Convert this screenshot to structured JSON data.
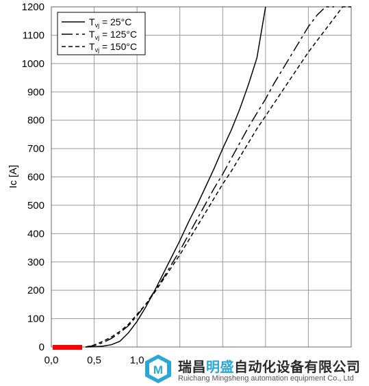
{
  "chart_data": {
    "type": "line",
    "title": "",
    "xlabel": "",
    "ylabel": "Ic [A]",
    "xlim": [
      0.0,
      3.5
    ],
    "ylim": [
      0,
      1200
    ],
    "x_ticks": [
      "0,0",
      "0,5",
      "1,0"
    ],
    "y_ticks": [
      "0",
      "100",
      "200",
      "300",
      "400",
      "500",
      "600",
      "700",
      "800",
      "900",
      "1000",
      "1100",
      "1200"
    ],
    "grid": true,
    "legend_position": "top-left",
    "series": [
      {
        "name": "Tvj = 25°C",
        "legend_main": "T",
        "legend_sub": "vj",
        "legend_rest": " = 25°C",
        "dash": "solid",
        "x": [
          0.4,
          0.5,
          0.6,
          0.7,
          0.8,
          0.9,
          1.0,
          1.1,
          1.2,
          1.3,
          1.4,
          1.5,
          1.6,
          1.7,
          1.8,
          1.9,
          2.0,
          2.1,
          2.2,
          2.3,
          2.4,
          2.5
        ],
        "y": [
          0,
          1,
          3,
          8,
          20,
          50,
          90,
          140,
          195,
          255,
          315,
          375,
          440,
          500,
          565,
          630,
          700,
          765,
          840,
          925,
          1020,
          1200
        ]
      },
      {
        "name": "Tvj = 125°C",
        "legend_main": "T",
        "legend_sub": "vj",
        "legend_rest": " = 125°C",
        "dash": "longdash",
        "x": [
          0.4,
          0.5,
          0.6,
          0.7,
          0.8,
          0.9,
          1.0,
          1.1,
          1.2,
          1.3,
          1.4,
          1.5,
          1.6,
          1.7,
          1.8,
          1.9,
          2.0,
          2.1,
          2.2,
          2.3,
          2.4,
          2.5,
          2.6,
          2.7,
          2.8,
          2.9,
          3.0,
          3.1,
          3.2,
          3.3
        ],
        "y": [
          0,
          5,
          15,
          30,
          50,
          75,
          110,
          150,
          195,
          240,
          290,
          340,
          395,
          450,
          505,
          560,
          610,
          665,
          720,
          775,
          825,
          875,
          930,
          980,
          1030,
          1080,
          1130,
          1170,
          1200,
          1200
        ]
      },
      {
        "name": "Tvj = 150°C",
        "legend_main": "T",
        "legend_sub": "vj",
        "legend_rest": " = 150°C",
        "dash": "shortdash",
        "x": [
          0.4,
          0.5,
          0.6,
          0.7,
          0.8,
          0.9,
          1.0,
          1.1,
          1.2,
          1.3,
          1.4,
          1.5,
          1.6,
          1.7,
          1.8,
          1.9,
          2.0,
          2.1,
          2.2,
          2.3,
          2.4,
          2.5,
          2.6,
          2.7,
          2.8,
          2.9,
          3.0,
          3.1,
          3.2,
          3.3,
          3.4,
          3.5
        ],
        "y": [
          0,
          7,
          20,
          35,
          55,
          80,
          115,
          150,
          190,
          235,
          280,
          325,
          375,
          425,
          475,
          525,
          575,
          620,
          670,
          720,
          770,
          815,
          860,
          905,
          950,
          995,
          1040,
          1080,
          1120,
          1160,
          1200,
          1200
        ]
      }
    ]
  },
  "watermark": {
    "company_zh_a": "瑞昌",
    "company_zh_b": "明盛",
    "company_zh_c": "自动化设备有限公司",
    "company_en": "Ruichang Mingsheng automation equipment Co., Ltd",
    "logo_text": "M",
    "accent_color": "#29a7d6",
    "text_color": "#2a2a2a"
  },
  "colors": {
    "line": "#000000",
    "grid": "#999999",
    "marker": "#ff0000"
  }
}
